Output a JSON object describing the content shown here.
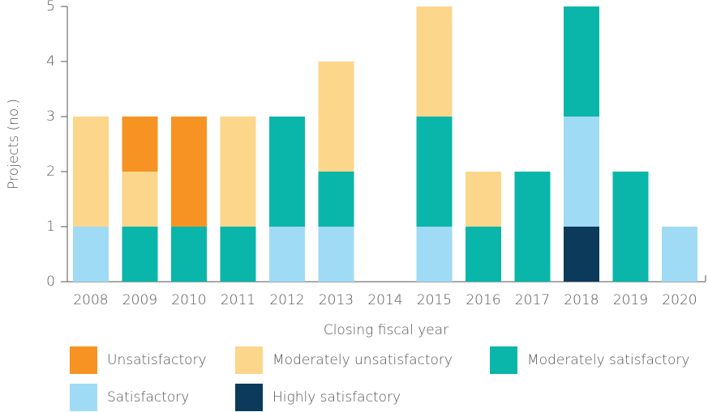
{
  "chart_data": {
    "type": "stacked-bar",
    "y_label": "Projects (no.)",
    "x_label": "Closing fiscal year",
    "categories": [
      "2008",
      "2009",
      "2010",
      "2011",
      "2012",
      "2013",
      "2014",
      "2015",
      "2016",
      "2017",
      "2018",
      "2019",
      "2020"
    ],
    "series": [
      {
        "name": "Highly satisfactory",
        "color": "#0b3a5b",
        "values": [
          0,
          0,
          0,
          0,
          0,
          0,
          0,
          0,
          0,
          0,
          1,
          0,
          0
        ]
      },
      {
        "name": "Satisfactory",
        "color": "#9fdbf5",
        "values": [
          1,
          0,
          0,
          0,
          1,
          1,
          0,
          1,
          0,
          0,
          2,
          0,
          1
        ]
      },
      {
        "name": "Moderately satisfactory",
        "color": "#0ab6aa",
        "values": [
          0,
          1,
          1,
          1,
          2,
          1,
          0,
          2,
          1,
          2,
          2,
          2,
          0
        ]
      },
      {
        "name": "Moderately unsatisfactory",
        "color": "#fbd68b",
        "values": [
          2,
          1,
          0,
          2,
          0,
          2,
          0,
          2,
          1,
          0,
          0,
          0,
          0
        ]
      },
      {
        "name": "Unsatisfactory",
        "color": "#f69322",
        "values": [
          0,
          1,
          2,
          0,
          0,
          0,
          0,
          0,
          0,
          0,
          0,
          0,
          0
        ]
      }
    ],
    "ylim": [
      0,
      5
    ],
    "yticks": [
      0,
      1,
      2,
      3,
      4,
      5
    ]
  }
}
